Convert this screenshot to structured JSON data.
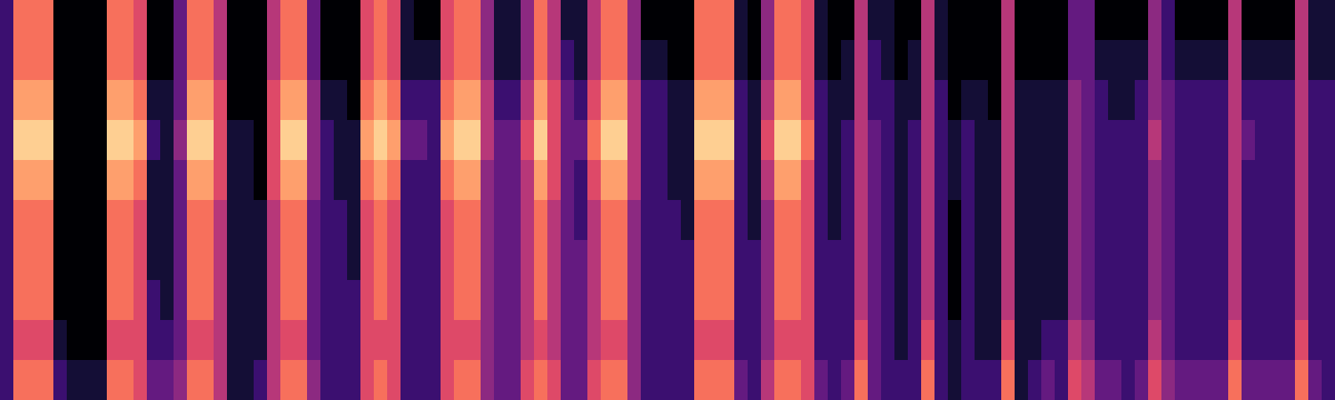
{
  "chart_data": {
    "type": "heatmap",
    "color": "magma",
    "tick_labels": false,
    "color_range": [
      0,
      10
    ],
    "cells": [
      [
        2,
        2,
        2,
        2,
        2,
        2,
        2,
        2,
        2,
        2
      ],
      [
        7,
        7,
        8,
        9,
        8,
        7,
        7,
        7,
        6,
        7
      ],
      [
        7,
        7,
        8,
        9,
        8,
        7,
        7,
        7,
        6,
        7
      ],
      [
        7,
        7,
        8,
        9,
        8,
        7,
        7,
        7,
        6,
        7
      ],
      [
        0,
        0,
        0,
        0,
        0,
        0,
        0,
        0,
        1,
        2
      ],
      [
        0,
        0,
        0,
        0,
        0,
        0,
        0,
        0,
        0,
        1
      ],
      [
        0,
        0,
        0,
        0,
        0,
        0,
        0,
        0,
        0,
        1
      ],
      [
        0,
        0,
        0,
        0,
        0,
        0,
        0,
        0,
        0,
        1
      ],
      [
        7,
        7,
        8,
        9,
        8,
        7,
        7,
        7,
        6,
        7
      ],
      [
        7,
        7,
        8,
        9,
        8,
        7,
        7,
        7,
        6,
        7
      ],
      [
        6,
        6,
        7,
        8,
        7,
        6,
        6,
        6,
        6,
        6
      ],
      [
        0,
        0,
        1,
        2,
        1,
        1,
        1,
        2,
        2,
        3
      ],
      [
        0,
        0,
        1,
        1,
        1,
        1,
        1,
        1,
        2,
        3
      ],
      [
        3,
        3,
        3,
        4,
        3,
        3,
        3,
        3,
        3,
        4
      ],
      [
        7,
        7,
        8,
        9,
        8,
        7,
        7,
        7,
        6,
        7
      ],
      [
        7,
        7,
        8,
        9,
        8,
        7,
        7,
        7,
        6,
        7
      ],
      [
        5,
        5,
        6,
        6,
        6,
        5,
        5,
        5,
        5,
        5
      ],
      [
        0,
        0,
        0,
        1,
        1,
        1,
        1,
        1,
        1,
        1
      ],
      [
        0,
        0,
        0,
        1,
        1,
        1,
        1,
        1,
        1,
        1
      ],
      [
        0,
        0,
        0,
        0,
        0,
        1,
        1,
        1,
        1,
        2
      ],
      [
        5,
        5,
        6,
        6,
        6,
        5,
        5,
        5,
        5,
        5
      ],
      [
        7,
        7,
        8,
        9,
        8,
        7,
        7,
        7,
        6,
        7
      ],
      [
        7,
        7,
        8,
        9,
        8,
        7,
        7,
        7,
        6,
        7
      ],
      [
        3,
        3,
        4,
        4,
        4,
        3,
        3,
        3,
        3,
        4
      ],
      [
        0,
        0,
        1,
        2,
        2,
        2,
        2,
        2,
        2,
        2
      ],
      [
        0,
        0,
        1,
        1,
        1,
        2,
        2,
        2,
        2,
        2
      ],
      [
        0,
        0,
        0,
        1,
        1,
        1,
        1,
        2,
        2,
        2
      ],
      [
        6,
        6,
        7,
        8,
        7,
        6,
        6,
        6,
        6,
        6
      ],
      [
        7,
        7,
        8,
        9,
        8,
        7,
        7,
        7,
        6,
        7
      ],
      [
        6,
        6,
        7,
        8,
        7,
        6,
        6,
        6,
        6,
        6
      ],
      [
        1,
        1,
        2,
        3,
        2,
        2,
        2,
        2,
        2,
        2
      ],
      [
        0,
        1,
        2,
        3,
        2,
        2,
        2,
        2,
        2,
        2
      ],
      [
        0,
        1,
        2,
        2,
        2,
        2,
        2,
        2,
        2,
        2
      ],
      [
        6,
        6,
        7,
        8,
        7,
        6,
        6,
        6,
        6,
        6
      ],
      [
        7,
        7,
        8,
        9,
        8,
        7,
        7,
        7,
        6,
        7
      ],
      [
        7,
        7,
        8,
        9,
        8,
        7,
        7,
        7,
        6,
        7
      ],
      [
        4,
        4,
        5,
        5,
        4,
        4,
        4,
        4,
        4,
        4
      ],
      [
        1,
        1,
        2,
        3,
        3,
        3,
        3,
        3,
        3,
        3
      ],
      [
        1,
        1,
        2,
        3,
        3,
        3,
        3,
        3,
        3,
        3
      ],
      [
        4,
        4,
        5,
        6,
        5,
        5,
        5,
        5,
        5,
        6
      ],
      [
        7,
        7,
        8,
        9,
        8,
        7,
        7,
        7,
        6,
        7
      ],
      [
        5,
        5,
        6,
        6,
        6,
        5,
        5,
        5,
        5,
        6
      ],
      [
        1,
        2,
        3,
        3,
        3,
        3,
        3,
        3,
        3,
        3
      ],
      [
        1,
        1,
        2,
        3,
        2,
        2,
        3,
        3,
        3,
        3
      ],
      [
        5,
        5,
        6,
        7,
        6,
        5,
        5,
        5,
        5,
        6
      ],
      [
        7,
        7,
        8,
        9,
        8,
        7,
        7,
        7,
        6,
        7
      ],
      [
        7,
        7,
        8,
        9,
        8,
        7,
        7,
        7,
        6,
        7
      ],
      [
        4,
        4,
        5,
        5,
        5,
        4,
        4,
        4,
        4,
        4
      ],
      [
        0,
        1,
        2,
        2,
        2,
        2,
        2,
        2,
        2,
        2
      ],
      [
        0,
        1,
        2,
        2,
        2,
        2,
        2,
        2,
        2,
        2
      ],
      [
        0,
        0,
        1,
        1,
        1,
        2,
        2,
        2,
        2,
        2
      ],
      [
        0,
        0,
        1,
        1,
        1,
        1,
        2,
        2,
        2,
        2
      ],
      [
        7,
        7,
        8,
        9,
        8,
        7,
        7,
        7,
        6,
        7
      ],
      [
        7,
        7,
        8,
        9,
        8,
        7,
        7,
        7,
        6,
        7
      ],
      [
        7,
        7,
        8,
        9,
        8,
        7,
        7,
        7,
        6,
        7
      ],
      [
        1,
        1,
        2,
        2,
        2,
        2,
        2,
        2,
        2,
        3
      ],
      [
        0,
        0,
        1,
        1,
        1,
        1,
        2,
        2,
        2,
        2
      ],
      [
        4,
        4,
        5,
        6,
        5,
        4,
        4,
        4,
        4,
        5
      ],
      [
        7,
        7,
        8,
        9,
        8,
        7,
        7,
        7,
        6,
        7
      ],
      [
        7,
        7,
        8,
        9,
        8,
        7,
        7,
        7,
        6,
        7
      ],
      [
        6,
        6,
        6,
        7,
        6,
        6,
        6,
        6,
        6,
        6
      ],
      [
        1,
        1,
        2,
        2,
        2,
        2,
        2,
        2,
        2,
        3
      ],
      [
        0,
        0,
        1,
        1,
        1,
        1,
        2,
        2,
        2,
        2
      ],
      [
        0,
        1,
        1,
        2,
        2,
        2,
        2,
        2,
        2,
        3
      ],
      [
        5,
        5,
        5,
        5,
        5,
        5,
        5,
        5,
        6,
        7
      ],
      [
        1,
        2,
        2,
        3,
        3,
        3,
        3,
        3,
        3,
        3
      ],
      [
        1,
        1,
        2,
        2,
        2,
        2,
        2,
        2,
        2,
        2
      ],
      [
        0,
        0,
        1,
        1,
        1,
        1,
        1,
        1,
        1,
        2
      ],
      [
        0,
        1,
        1,
        2,
        2,
        2,
        2,
        2,
        2,
        2
      ],
      [
        5,
        5,
        5,
        5,
        5,
        5,
        5,
        5,
        6,
        7
      ],
      [
        1,
        1,
        2,
        2,
        2,
        2,
        2,
        2,
        2,
        2
      ],
      [
        0,
        0,
        0,
        1,
        1,
        0,
        0,
        0,
        1,
        1
      ],
      [
        0,
        0,
        1,
        2,
        2,
        2,
        2,
        2,
        2,
        2
      ],
      [
        0,
        0,
        1,
        1,
        1,
        1,
        1,
        1,
        1,
        2
      ],
      [
        0,
        0,
        0,
        1,
        1,
        1,
        1,
        1,
        1,
        2
      ],
      [
        5,
        5,
        5,
        5,
        5,
        5,
        5,
        5,
        6,
        7
      ],
      [
        0,
        0,
        1,
        1,
        1,
        1,
        1,
        1,
        1,
        1
      ],
      [
        0,
        0,
        1,
        1,
        1,
        1,
        1,
        1,
        1,
        2
      ],
      [
        0,
        0,
        1,
        1,
        1,
        1,
        1,
        1,
        2,
        3
      ],
      [
        0,
        0,
        1,
        1,
        1,
        1,
        1,
        1,
        2,
        2
      ],
      [
        3,
        3,
        4,
        4,
        4,
        4,
        4,
        4,
        5,
        6
      ],
      [
        3,
        3,
        3,
        3,
        3,
        3,
        3,
        3,
        4,
        5
      ],
      [
        0,
        1,
        2,
        2,
        2,
        2,
        2,
        2,
        2,
        3
      ],
      [
        0,
        1,
        1,
        2,
        2,
        2,
        2,
        2,
        2,
        3
      ],
      [
        0,
        1,
        1,
        2,
        2,
        2,
        2,
        2,
        2,
        2
      ],
      [
        0,
        1,
        2,
        2,
        2,
        2,
        2,
        2,
        2,
        3
      ],
      [
        4,
        4,
        4,
        5,
        4,
        4,
        4,
        4,
        5,
        6
      ],
      [
        2,
        2,
        3,
        3,
        3,
        3,
        3,
        3,
        3,
        4
      ],
      [
        0,
        1,
        2,
        2,
        2,
        2,
        2,
        2,
        2,
        3
      ],
      [
        0,
        1,
        2,
        2,
        2,
        2,
        2,
        2,
        2,
        3
      ],
      [
        0,
        1,
        2,
        2,
        2,
        2,
        2,
        2,
        2,
        3
      ],
      [
        0,
        1,
        2,
        2,
        2,
        2,
        2,
        2,
        2,
        3
      ],
      [
        5,
        5,
        5,
        5,
        5,
        5,
        5,
        5,
        6,
        7
      ],
      [
        0,
        1,
        2,
        3,
        2,
        2,
        2,
        2,
        2,
        3
      ],
      [
        0,
        1,
        2,
        2,
        2,
        2,
        2,
        2,
        2,
        3
      ],
      [
        0,
        1,
        2,
        2,
        2,
        2,
        2,
        2,
        2,
        3
      ],
      [
        0,
        1,
        2,
        2,
        2,
        2,
        2,
        2,
        2,
        3
      ],
      [
        5,
        5,
        5,
        5,
        5,
        5,
        5,
        5,
        6,
        7
      ],
      [
        1,
        1,
        2,
        2,
        2,
        2,
        2,
        2,
        2,
        3
      ],
      [
        1,
        1,
        2,
        2,
        2,
        2,
        2,
        2,
        2,
        2
      ]
    ]
  }
}
